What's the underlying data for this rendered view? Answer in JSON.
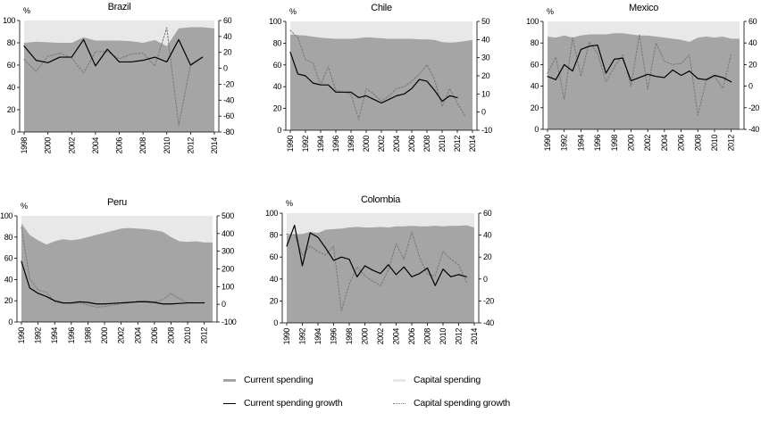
{
  "figure": {
    "background": "#ffffff"
  },
  "colors": {
    "current_area": "#a5a5a5",
    "capital_area": "#e8e8e8",
    "current_line": "#000000",
    "capital_line": "#7a7a7a",
    "axis": "#000000"
  },
  "legend": {
    "items": [
      {
        "label": "Current spending",
        "marker": "area-swatch",
        "color_key": "current_area"
      },
      {
        "label": "Capital spending",
        "marker": "area-swatch",
        "color_key": "capital_area"
      },
      {
        "label": "Current spending growth",
        "marker": "solid-line",
        "color_key": "current_line"
      },
      {
        "label": "Capital spending growth",
        "marker": "dotted-line",
        "color_key": "capital_line"
      }
    ]
  },
  "chart_data": [
    {
      "type": "area",
      "title": "Brazil",
      "unit_label": "%",
      "stacked_to": 100,
      "left_axis": {
        "min": 0,
        "max": 100,
        "ticks": [
          100,
          80,
          60,
          40,
          20,
          0
        ]
      },
      "right_axis": {
        "min": -80,
        "max": 60,
        "ticks": [
          60,
          40,
          20,
          0,
          -20,
          -40,
          -60,
          -80
        ]
      },
      "years": [
        1998,
        1999,
        2000,
        2001,
        2002,
        2003,
        2004,
        2005,
        2006,
        2007,
        2008,
        2009,
        2010,
        2011,
        2012,
        2013,
        2014
      ],
      "x_tick_labels": [
        "1998",
        "2000",
        "2002",
        "2004",
        "2006",
        "2008",
        "2010",
        "2012",
        "2014"
      ],
      "series": {
        "current_spending_share_pct": [
          80,
          81,
          80.5,
          80,
          80,
          85,
          82,
          82,
          82,
          81.5,
          80,
          82.5,
          77,
          93,
          94,
          94,
          93
        ],
        "current_spending_growth_pct": [
          28,
          10,
          7,
          14,
          14,
          36,
          3,
          24,
          8,
          8,
          10,
          14,
          8,
          36,
          4,
          14,
          null
        ],
        "capital_spending_growth_pct": [
          11,
          -4,
          15,
          19,
          13,
          -6,
          21,
          21,
          12,
          18,
          19,
          3,
          51,
          -72,
          5,
          14,
          null
        ]
      }
    },
    {
      "type": "area",
      "title": "Chile",
      "unit_label": "%",
      "stacked_to": 100,
      "left_axis": {
        "min": 0,
        "max": 100,
        "ticks": [
          100,
          80,
          60,
          40,
          20,
          0
        ]
      },
      "right_axis": {
        "min": -10,
        "max": 50,
        "ticks": [
          50,
          40,
          30,
          20,
          10,
          0,
          -10
        ]
      },
      "years": [
        1990,
        1991,
        1992,
        1993,
        1994,
        1995,
        1996,
        1997,
        1998,
        1999,
        2000,
        2001,
        2002,
        2003,
        2004,
        2005,
        2006,
        2007,
        2008,
        2009,
        2010,
        2011,
        2012,
        2013,
        2014
      ],
      "x_tick_labels": [
        "1990",
        "1992",
        "1994",
        "1996",
        "1998",
        "2000",
        "2002",
        "2004",
        "2006",
        "2008",
        "2010",
        "2012",
        "2014"
      ],
      "series": {
        "current_spending_share_pct": [
          88,
          87.5,
          87,
          86,
          85,
          84.5,
          84,
          84,
          84,
          84.5,
          85.5,
          85,
          84.5,
          84,
          84,
          84,
          84,
          83.5,
          83.5,
          83,
          81,
          80.5,
          81,
          82,
          83
        ],
        "current_spending_growth_pct": [
          33,
          21,
          20,
          16,
          15,
          15,
          11,
          11,
          11,
          8,
          9,
          7,
          5,
          7,
          9,
          10,
          13,
          18,
          17,
          12,
          6,
          9,
          8,
          null,
          null
        ],
        "capital_spending_growth_pct": [
          45,
          41,
          29,
          27,
          15,
          25,
          12,
          11,
          10,
          -4,
          13,
          10,
          6,
          9,
          13,
          14,
          17,
          21,
          26,
          18,
          3,
          13,
          5,
          -2,
          null
        ]
      }
    },
    {
      "type": "area",
      "title": "Mexico",
      "unit_label": "%",
      "stacked_to": 100,
      "left_axis": {
        "min": 0,
        "max": 100,
        "ticks": [
          100,
          80,
          60,
          40,
          20,
          0
        ]
      },
      "right_axis": {
        "min": -40,
        "max": 60,
        "ticks": [
          60,
          40,
          20,
          0,
          -20,
          -40
        ]
      },
      "years": [
        1990,
        1991,
        1992,
        1993,
        1994,
        1995,
        1996,
        1997,
        1998,
        1999,
        2000,
        2001,
        2002,
        2003,
        2004,
        2005,
        2006,
        2007,
        2008,
        2009,
        2010,
        2011,
        2012,
        2013
      ],
      "x_tick_labels": [
        "1990",
        "1992",
        "1994",
        "1996",
        "1998",
        "2000",
        "2002",
        "2004",
        "2006",
        "2008",
        "2010",
        "2012"
      ],
      "series": {
        "current_spending_share_pct": [
          86,
          85,
          87,
          85,
          87,
          88,
          88,
          88,
          89,
          89,
          88,
          87,
          87,
          86,
          85,
          84,
          83,
          81,
          85,
          86,
          85,
          86,
          84,
          84
        ],
        "current_spending_growth_pct": [
          9,
          6,
          20,
          14,
          34,
          37,
          38,
          12,
          25,
          26,
          5,
          8,
          11,
          9,
          8,
          15,
          10,
          14,
          7,
          6,
          10,
          8,
          4,
          null
        ],
        "capital_spending_growth_pct": [
          12,
          27,
          -12,
          45,
          9,
          41,
          30,
          4,
          18,
          29,
          0,
          48,
          -3,
          40,
          23,
          20,
          21,
          29,
          -27,
          5,
          9,
          -2,
          30,
          null
        ]
      }
    },
    {
      "type": "area",
      "title": "Peru",
      "unit_label": "%",
      "stacked_to": 100,
      "left_axis": {
        "min": 0,
        "max": 100,
        "ticks": [
          100,
          80,
          60,
          40,
          20,
          0
        ]
      },
      "right_axis": {
        "min": -100,
        "max": 500,
        "ticks": [
          500,
          400,
          300,
          200,
          100,
          0,
          -100
        ]
      },
      "years": [
        1990,
        1991,
        1992,
        1993,
        1994,
        1995,
        1996,
        1997,
        1998,
        1999,
        2000,
        2001,
        2002,
        2003,
        2004,
        2005,
        2006,
        2007,
        2008,
        2009,
        2010,
        2011,
        2012,
        2013
      ],
      "x_tick_labels": [
        "1990",
        "1992",
        "1994",
        "1996",
        "1998",
        "2000",
        "2002",
        "2004",
        "2006",
        "2008",
        "2010",
        "2012"
      ],
      "series": {
        "current_spending_share_pct": [
          93,
          82,
          77,
          73,
          76,
          78,
          77,
          78,
          80,
          82,
          84,
          86,
          88,
          88.5,
          88,
          87.5,
          86.5,
          85,
          80,
          76,
          75.5,
          76,
          75,
          75
        ],
        "current_spending_growth_pct": [
          242,
          92,
          62,
          44,
          20,
          8,
          8,
          14,
          11,
          2,
          2,
          5,
          8,
          11,
          14,
          14,
          11,
          2,
          2,
          5,
          8,
          8,
          8,
          null
        ],
        "capital_spending_growth_pct": [
          434,
          146,
          80,
          68,
          14,
          5,
          2,
          8,
          -4,
          -16,
          -13,
          -4,
          2,
          8,
          17,
          20,
          14,
          26,
          62,
          32,
          8,
          8,
          11,
          null
        ]
      }
    },
    {
      "type": "area",
      "title": "Colombia",
      "unit_label": "%",
      "stacked_to": 100,
      "left_axis": {
        "min": 0,
        "max": 100,
        "ticks": [
          100,
          80,
          60,
          40,
          20,
          0
        ]
      },
      "right_axis": {
        "min": -40,
        "max": 60,
        "ticks": [
          60,
          40,
          20,
          0,
          -20,
          -40
        ]
      },
      "years": [
        1990,
        1991,
        1992,
        1993,
        1994,
        1995,
        1996,
        1997,
        1998,
        1999,
        2000,
        2001,
        2002,
        2003,
        2004,
        2005,
        2006,
        2007,
        2008,
        2009,
        2010,
        2011,
        2012,
        2013,
        2014
      ],
      "x_tick_labels": [
        "1990",
        "1992",
        "1994",
        "1996",
        "1998",
        "2000",
        "2002",
        "2004",
        "2006",
        "2008",
        "2010",
        "2012",
        "2014"
      ],
      "series": {
        "current_spending_share_pct": [
          80,
          81,
          81,
          83,
          82,
          85,
          85.5,
          86,
          87,
          87.5,
          87,
          87,
          87.5,
          87,
          88,
          88,
          88.5,
          88,
          88,
          88.5,
          88,
          88.5,
          88.5,
          89,
          87
        ],
        "current_spending_growth_pct": [
          30,
          49,
          12,
          42,
          38,
          28,
          17,
          20,
          18,
          2,
          12,
          8,
          5,
          13,
          4,
          11,
          2,
          5,
          10,
          -6,
          9,
          2,
          4,
          2,
          null
        ],
        "capital_spending_growth_pct": [
          41,
          40,
          22,
          30,
          25,
          22,
          30,
          -29,
          -5,
          11,
          3,
          -2,
          -6,
          8,
          32,
          18,
          43,
          20,
          4,
          3,
          25,
          18,
          13,
          -3,
          null
        ]
      }
    }
  ]
}
